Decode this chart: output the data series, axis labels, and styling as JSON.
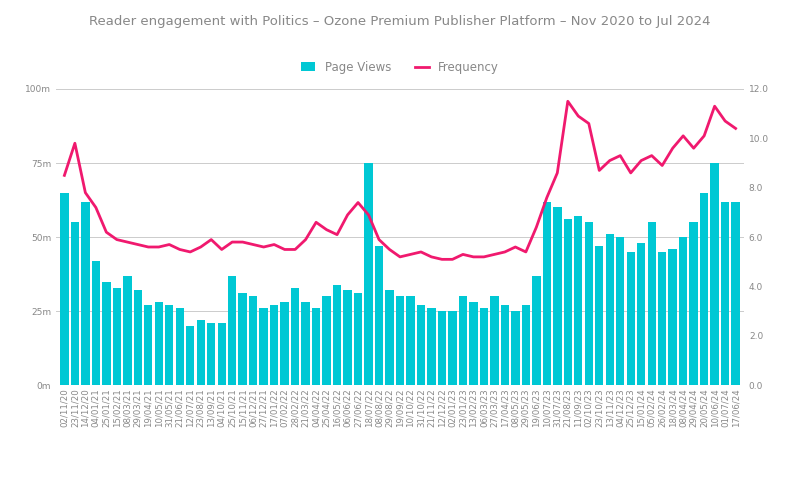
{
  "title": "Reader engagement with Politics – Ozone Premium Publisher Platform – Nov 2020 to Jul 2024",
  "legend_items": [
    "Page Views",
    "Frequency"
  ],
  "bar_color": "#00C8D4",
  "line_color": "#F0196E",
  "background_color": "#ffffff",
  "left_ylim": [
    0,
    100000000
  ],
  "right_ylim": [
    0,
    12.0
  ],
  "left_yticks": [
    0,
    25000000,
    50000000,
    75000000,
    100000000
  ],
  "left_yticklabels": [
    "0m",
    "25m",
    "50m",
    "75m",
    "100m"
  ],
  "right_yticks": [
    0.0,
    2.0,
    4.0,
    6.0,
    8.0,
    10.0,
    12.0
  ],
  "right_yticklabels": [
    "0.0",
    "2.0",
    "4.0",
    "6.0",
    "8.0",
    "10.0",
    "12.0"
  ],
  "title_fontsize": 9.5,
  "legend_fontsize": 8.5,
  "tick_fontsize": 6.5,
  "grid_color": "#cccccc",
  "title_color": "#888888",
  "tick_color": "#888888",
  "dates": [
    "02/11/20",
    "23/11/20",
    "14/12/20",
    "04/01/21",
    "25/01/21",
    "15/02/21",
    "08/03/21",
    "29/03/21",
    "19/04/21",
    "10/05/21",
    "31/05/21",
    "21/06/21",
    "12/07/21",
    "23/08/21",
    "13/09/21",
    "04/10/21",
    "25/10/21",
    "15/11/21",
    "06/12/21",
    "27/12/21",
    "17/01/22",
    "07/02/22",
    "28/02/22",
    "21/03/22",
    "04/04/22",
    "25/04/22",
    "16/05/22",
    "06/06/22",
    "27/06/22",
    "18/07/22",
    "08/08/22",
    "29/08/22",
    "19/09/22",
    "10/10/22",
    "31/10/22",
    "21/11/22",
    "12/12/22",
    "02/01/23",
    "23/01/23",
    "13/02/23",
    "06/03/23",
    "27/03/23",
    "17/04/23",
    "08/05/23",
    "29/05/23",
    "19/06/23",
    "10/07/23",
    "31/07/23",
    "21/08/23",
    "11/09/23",
    "02/10/23",
    "23/10/23",
    "13/11/23",
    "04/12/23",
    "25/12/23",
    "15/01/24",
    "05/02/24",
    "26/02/24",
    "18/03/24",
    "08/04/24",
    "29/04/24",
    "20/05/24",
    "10/06/24",
    "01/07/24",
    "17/06/24"
  ],
  "page_views": [
    65000000,
    55000000,
    62000000,
    42000000,
    35000000,
    33000000,
    37000000,
    32000000,
    27000000,
    28000000,
    27000000,
    26000000,
    20000000,
    22000000,
    21000000,
    21000000,
    37000000,
    31000000,
    30000000,
    26000000,
    27000000,
    28000000,
    33000000,
    28000000,
    26000000,
    30000000,
    34000000,
    32000000,
    31000000,
    75000000,
    47000000,
    32000000,
    30000000,
    30000000,
    27000000,
    26000000,
    25000000,
    25000000,
    30000000,
    28000000,
    26000000,
    30000000,
    27000000,
    25000000,
    27000000,
    37000000,
    62000000,
    60000000,
    56000000,
    57000000,
    55000000,
    47000000,
    51000000,
    50000000,
    45000000,
    48000000,
    55000000,
    45000000,
    46000000,
    50000000,
    55000000,
    65000000,
    75000000,
    62000000,
    62000000
  ],
  "frequency": [
    8.5,
    9.8,
    7.8,
    7.2,
    6.2,
    5.9,
    5.8,
    5.7,
    5.6,
    5.6,
    5.7,
    5.5,
    5.4,
    5.6,
    5.9,
    5.5,
    5.8,
    5.8,
    5.7,
    5.6,
    5.7,
    5.5,
    5.5,
    5.9,
    6.6,
    6.3,
    6.1,
    6.9,
    7.4,
    6.9,
    5.9,
    5.5,
    5.2,
    5.3,
    5.4,
    5.2,
    5.1,
    5.1,
    5.3,
    5.2,
    5.2,
    5.3,
    5.4,
    5.6,
    5.4,
    6.4,
    7.6,
    8.6,
    11.5,
    10.9,
    10.6,
    8.7,
    9.1,
    9.3,
    8.6,
    9.1,
    9.3,
    8.9,
    9.6,
    10.1,
    9.6,
    10.1,
    11.3,
    10.7,
    10.4
  ]
}
